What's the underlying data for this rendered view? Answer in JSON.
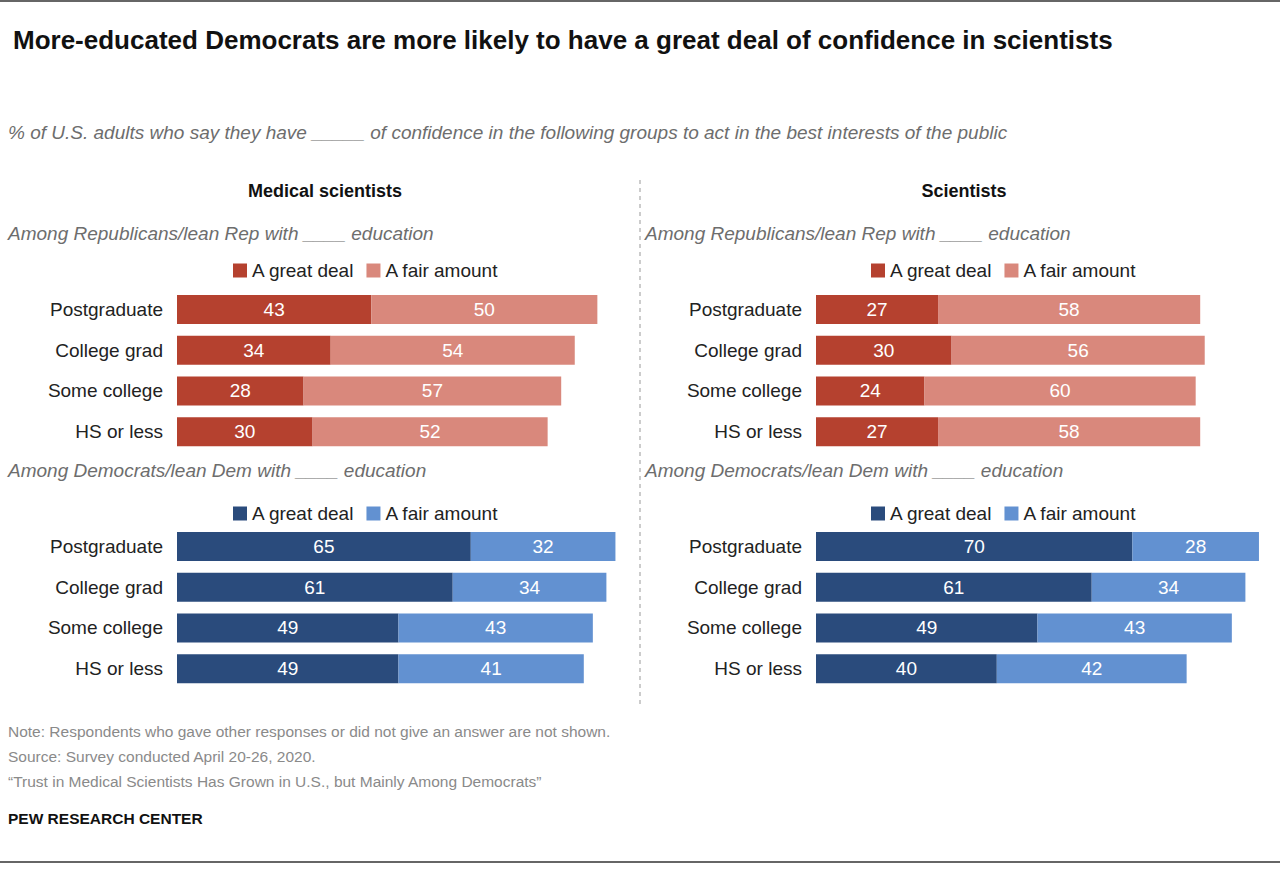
{
  "title": "More-educated Democrats are more likely to have a great deal of confidence in scientists",
  "subtitle": "% of U.S. adults who say they have _____ of confidence in the following groups to act in the best interests of the public",
  "panel_titles": [
    "Medical scientists",
    "Scientists"
  ],
  "note": "Note: Respondents who gave other responses or did not give an answer are not shown.",
  "source": "Source: Survey conducted April 20-26, 2020.",
  "report_title": "“Trust in Medical Scientists Has Grown in U.S., but Mainly Among Democrats”",
  "publisher": "PEW RESEARCH CENTER",
  "chart_data": [
    {
      "type": "bar",
      "title": "Among Republicans/lean Rep with ____ education",
      "orientation": "horizontal",
      "stacked": true,
      "data_labels": true,
      "tick_labels": "y",
      "grid": false,
      "legend": "top",
      "xlim": [
        0,
        100
      ],
      "categories": [
        "Postgraduate",
        "College grad",
        "Some college",
        "HS or less"
      ],
      "series": [
        {
          "name": "A great deal",
          "color": "#b5412f",
          "values": [
            43,
            34,
            28,
            30
          ]
        },
        {
          "name": "A fair amount",
          "color": "#d9887c",
          "values": [
            50,
            54,
            57,
            52
          ]
        }
      ]
    },
    {
      "type": "bar",
      "title": "Among Democrats/lean Dem with ____ education",
      "orientation": "horizontal",
      "stacked": true,
      "data_labels": true,
      "tick_labels": "y",
      "grid": false,
      "legend": "top",
      "xlim": [
        0,
        100
      ],
      "categories": [
        "Postgraduate",
        "College grad",
        "Some college",
        "HS or less"
      ],
      "series": [
        {
          "name": "A great deal",
          "color": "#2a4b7c",
          "values": [
            65,
            61,
            49,
            49
          ]
        },
        {
          "name": "A fair amount",
          "color": "#6291d1",
          "values": [
            32,
            34,
            43,
            41
          ]
        }
      ]
    },
    {
      "type": "bar",
      "title": "Among Republicans/lean Rep with ____ education",
      "orientation": "horizontal",
      "stacked": true,
      "data_labels": true,
      "tick_labels": "y",
      "grid": false,
      "legend": "top",
      "xlim": [
        0,
        100
      ],
      "categories": [
        "Postgraduate",
        "College grad",
        "Some college",
        "HS or less"
      ],
      "series": [
        {
          "name": "A great deal",
          "color": "#b5412f",
          "values": [
            27,
            30,
            24,
            27
          ]
        },
        {
          "name": "A fair amount",
          "color": "#d9887c",
          "values": [
            58,
            56,
            60,
            58
          ]
        }
      ]
    },
    {
      "type": "bar",
      "title": "Among Democrats/lean Dem with ____ education",
      "orientation": "horizontal",
      "stacked": true,
      "data_labels": true,
      "tick_labels": "y",
      "grid": false,
      "legend": "top",
      "xlim": [
        0,
        100
      ],
      "categories": [
        "Postgraduate",
        "College grad",
        "Some college",
        "HS or less"
      ],
      "series": [
        {
          "name": "A great deal",
          "color": "#2a4b7c",
          "values": [
            70,
            61,
            49,
            40
          ]
        },
        {
          "name": "A fair amount",
          "color": "#6291d1",
          "values": [
            28,
            34,
            43,
            42
          ]
        }
      ]
    }
  ]
}
